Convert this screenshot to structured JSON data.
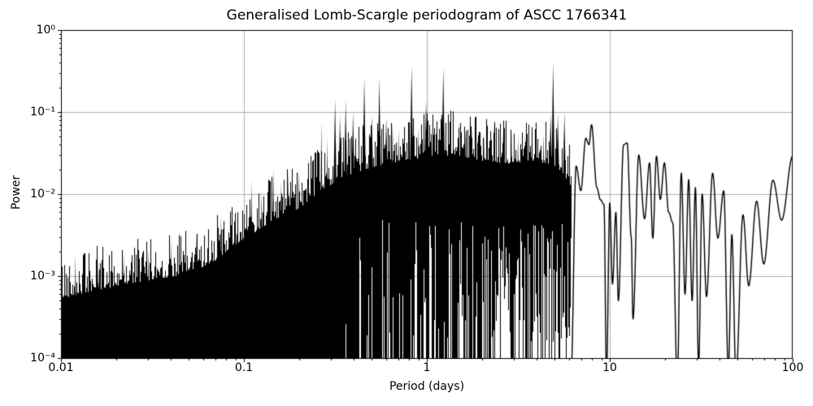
{
  "chart_data": {
    "type": "line",
    "title": "Generalised Lomb-Scargle periodogram of ASCC 1766341",
    "xlabel": "Period (days)",
    "ylabel": "Power",
    "xscale": "log",
    "yscale": "log",
    "xlim": [
      0.01,
      100
    ],
    "ylim": [
      0.0001,
      1
    ],
    "grid": true,
    "legend": false,
    "line_color": "#000000",
    "grid_color": "#b0b0b0",
    "spine_color": "#000000",
    "background_color": "#ffffff",
    "x_ticks": [
      {
        "v": 0.01,
        "label": "0.01"
      },
      {
        "v": 0.1,
        "label": "0.1"
      },
      {
        "v": 1,
        "label": "1"
      },
      {
        "v": 10,
        "label": "10"
      },
      {
        "v": 100,
        "label": "100"
      }
    ],
    "y_ticks": [
      {
        "v": 1,
        "label": "10⁰"
      },
      {
        "v": 0.1,
        "label": "10⁻¹"
      },
      {
        "v": 0.01,
        "label": "10⁻²"
      },
      {
        "v": 0.001,
        "label": "10⁻³"
      },
      {
        "v": 0.0001,
        "label": "10⁻⁴"
      }
    ],
    "dense_region": {
      "period_range": [
        0.01,
        6.15
      ],
      "note": "unresolved noise peaks fill from the upper envelope down to the plot bottom"
    },
    "noise_envelope": [
      [
        0.01,
        0.00075
      ],
      [
        0.014,
        0.0009
      ],
      [
        0.02,
        0.00105
      ],
      [
        0.03,
        0.00125
      ],
      [
        0.05,
        0.0015
      ],
      [
        0.07,
        0.0022
      ],
      [
        0.1,
        0.004
      ],
      [
        0.14,
        0.0065
      ],
      [
        0.2,
        0.0095
      ],
      [
        0.27,
        0.016
      ],
      [
        0.35,
        0.023
      ],
      [
        0.5,
        0.03
      ],
      [
        0.7,
        0.035
      ],
      [
        1.0,
        0.04
      ],
      [
        1.4,
        0.042
      ],
      [
        2.0,
        0.036
      ],
      [
        2.8,
        0.033
      ],
      [
        3.8,
        0.036
      ],
      [
        4.9,
        0.032
      ],
      [
        5.6,
        0.024
      ],
      [
        6.15,
        0.016
      ]
    ],
    "peaks": [
      [
        0.012,
        0.0018
      ],
      [
        0.016,
        0.0016
      ],
      [
        0.022,
        0.0019
      ],
      [
        0.03,
        0.0022
      ],
      [
        0.04,
        0.0028
      ],
      [
        0.055,
        0.0035
      ],
      [
        0.075,
        0.0055
      ],
      [
        0.09,
        0.0065
      ],
      [
        0.11,
        0.015
      ],
      [
        0.125,
        0.011
      ],
      [
        0.145,
        0.021
      ],
      [
        0.16,
        0.014
      ],
      [
        0.175,
        0.018
      ],
      [
        0.2,
        0.02
      ],
      [
        0.225,
        0.028
      ],
      [
        0.245,
        0.031
      ],
      [
        0.265,
        0.075
      ],
      [
        0.285,
        0.048
      ],
      [
        0.315,
        0.145
      ],
      [
        0.335,
        0.09
      ],
      [
        0.36,
        0.14
      ],
      [
        0.395,
        0.1
      ],
      [
        0.455,
        0.26
      ],
      [
        0.5,
        0.09
      ],
      [
        0.55,
        0.26
      ],
      [
        0.6,
        0.085
      ],
      [
        0.65,
        0.075
      ],
      [
        0.7,
        0.062
      ],
      [
        0.755,
        0.058
      ],
      [
        0.825,
        0.37
      ],
      [
        0.9,
        0.065
      ],
      [
        0.99,
        0.137
      ],
      [
        1.06,
        0.065
      ],
      [
        1.13,
        0.06
      ],
      [
        1.23,
        0.35
      ],
      [
        1.35,
        0.055
      ],
      [
        1.5,
        0.075
      ],
      [
        1.62,
        0.055
      ],
      [
        1.76,
        0.064
      ],
      [
        1.9,
        0.05
      ],
      [
        2.05,
        0.055
      ],
      [
        2.33,
        0.075
      ],
      [
        2.6,
        0.055
      ],
      [
        2.9,
        0.06
      ],
      [
        3.15,
        0.05
      ],
      [
        3.45,
        0.055
      ],
      [
        3.75,
        0.06
      ],
      [
        4.05,
        0.05
      ],
      [
        4.35,
        0.055
      ],
      [
        4.75,
        0.095
      ],
      [
        4.9,
        0.41
      ],
      [
        5.2,
        0.095
      ],
      [
        5.65,
        0.1
      ]
    ],
    "smooth_tail": [
      [
        6.15,
        7e-05
      ],
      [
        6.55,
        0.022
      ],
      [
        6.95,
        0.011
      ],
      [
        7.4,
        0.048
      ],
      [
        7.7,
        0.04
      ],
      [
        7.95,
        0.07
      ],
      [
        8.5,
        0.012
      ],
      [
        8.9,
        0.0085
      ],
      [
        9.3,
        0.0075
      ],
      [
        9.6,
        6e-05
      ],
      [
        10.0,
        0.0078
      ],
      [
        10.35,
        0.0008
      ],
      [
        10.8,
        0.006
      ],
      [
        11.15,
        0.0005
      ],
      [
        11.9,
        0.04
      ],
      [
        12.45,
        0.042
      ],
      [
        13.1,
        0.003
      ],
      [
        13.4,
        0.0003
      ],
      [
        14.4,
        0.03
      ],
      [
        15.5,
        0.005
      ],
      [
        16.5,
        0.024
      ],
      [
        17.2,
        0.0029
      ],
      [
        18.0,
        0.029
      ],
      [
        18.9,
        0.0086
      ],
      [
        19.9,
        0.024
      ],
      [
        21.0,
        0.006
      ],
      [
        22.1,
        0.0045
      ],
      [
        23.4,
        5e-05
      ],
      [
        24.6,
        0.018
      ],
      [
        25.8,
        0.0006
      ],
      [
        27.0,
        0.015
      ],
      [
        28.2,
        0.0005
      ],
      [
        29.4,
        0.012
      ],
      [
        30.6,
        8e-05
      ],
      [
        32.0,
        0.01
      ],
      [
        33.8,
        0.00056
      ],
      [
        36.5,
        0.018
      ],
      [
        39.0,
        0.0029
      ],
      [
        42.0,
        0.011
      ],
      [
        44.5,
        7e-05
      ],
      [
        46.5,
        0.0032
      ],
      [
        49.0,
        6e-05
      ],
      [
        53.5,
        0.0056
      ],
      [
        57.5,
        0.00076
      ],
      [
        63.5,
        0.0082
      ],
      [
        69.5,
        0.0014
      ],
      [
        78.0,
        0.0148
      ],
      [
        87.0,
        0.0048
      ],
      [
        100.0,
        0.029
      ]
    ]
  }
}
